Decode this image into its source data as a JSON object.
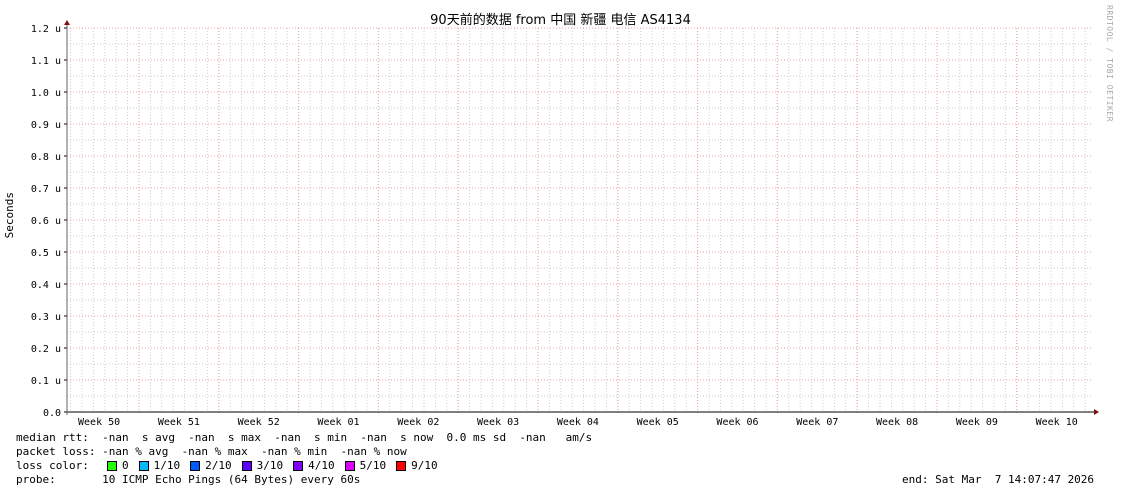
{
  "chart_data": {
    "type": "line",
    "title": "90天前的数据 from 中国 新疆 电信 AS4134",
    "ylabel": "Seconds",
    "xlabel": "",
    "ylim": [
      0,
      1.2
    ],
    "y_unit": "u",
    "yticks": [
      "0.0",
      "0.1 u",
      "0.2 u",
      "0.3 u",
      "0.4 u",
      "0.5 u",
      "0.6 u",
      "0.7 u",
      "0.8 u",
      "0.9 u",
      "1.0 u",
      "1.1 u",
      "1.2 u"
    ],
    "xticks": [
      "Week 50",
      "Week 51",
      "Week 52",
      "Week 01",
      "Week 02",
      "Week 03",
      "Week 04",
      "Week 05",
      "Week 06",
      "Week 07",
      "Week 08",
      "Week 09",
      "Week 10"
    ],
    "grid": true,
    "series": [],
    "colors": {
      "minor_grid": "#cccccc",
      "major_grid": "#f0a0a0",
      "axis": "#000000",
      "arrow": "#801010"
    }
  },
  "watermark": "RRDTOOL / TOBI OETIKER",
  "stats": {
    "median_rtt": "median rtt:  -nan  s avg  -nan  s max  -nan  s min  -nan  s now  0.0 ms sd  -nan   am/s",
    "packet_loss": "packet loss: -nan % avg  -nan % max  -nan % min  -nan % now",
    "loss_color_label": "loss color:",
    "loss_colors": [
      {
        "label": "0",
        "color": "#26ff00"
      },
      {
        "label": "1/10",
        "color": "#00b8ff"
      },
      {
        "label": "2/10",
        "color": "#0059ff"
      },
      {
        "label": "3/10",
        "color": "#5e00ff"
      },
      {
        "label": "4/10",
        "color": "#7e00ff"
      },
      {
        "label": "5/10",
        "color": "#dd00ff"
      },
      {
        "label": "9/10",
        "color": "#ff0000"
      }
    ],
    "probe": "probe:       10 ICMP Echo Pings (64 Bytes) every 60s",
    "end": "end: Sat Mar  7 14:07:47 2026"
  }
}
